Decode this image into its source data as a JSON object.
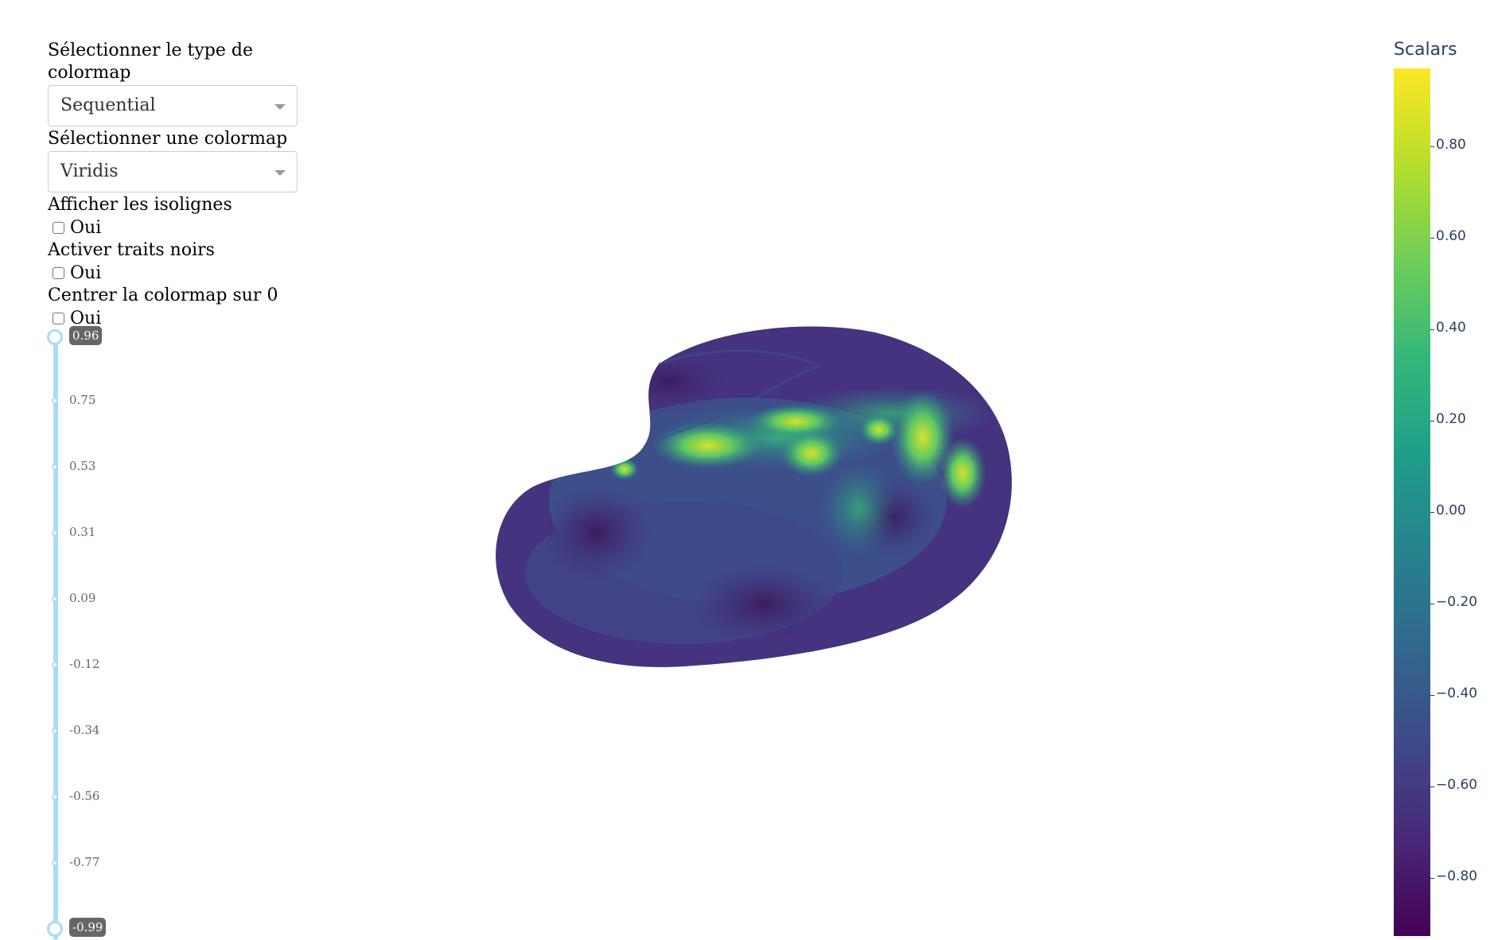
{
  "controls": {
    "colormap_type_label": "Sélectionner le type de colormap",
    "colormap_type_value": "Sequential",
    "colormap_label": "Sélectionner une colormap",
    "colormap_value": "Viridis",
    "isolines_label": "Afficher les isolignes",
    "isolines_option": "Oui",
    "isolines_checked": false,
    "black_lines_label": "Activer traits noirs",
    "black_lines_option": "Oui",
    "black_lines_checked": false,
    "center_label": "Centrer la colormap sur 0",
    "center_option": "Oui",
    "center_checked": false
  },
  "slider": {
    "max_value": "0.96",
    "min_value": "-0.99",
    "marks": [
      "0.75",
      "0.53",
      "0.31",
      "0.09",
      "-0.12",
      "-0.34",
      "-0.56",
      "-0.77"
    ]
  },
  "colorbar": {
    "title": "Scalars",
    "ticks": [
      "0.80",
      "0.60",
      "0.40",
      "0.20",
      "0.00",
      "−0.20",
      "−0.40",
      "−0.60",
      "−0.80"
    ],
    "colorscale": [
      "#440154",
      "#482878",
      "#3e4989",
      "#31688e",
      "#26828e",
      "#1f9e89",
      "#35b779",
      "#6ece58",
      "#b5de2b",
      "#fde725"
    ]
  }
}
